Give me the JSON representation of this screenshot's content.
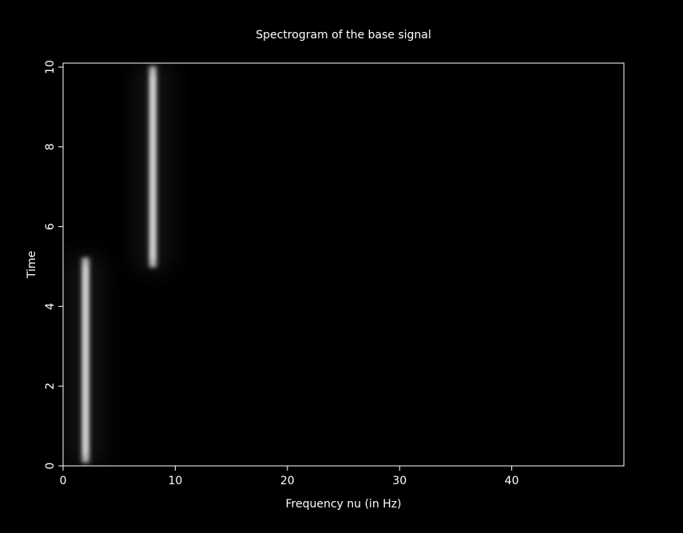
{
  "chart_data": {
    "type": "heatmap",
    "title": "Spectrogram of the base signal",
    "xlabel": "Frequency nu (in Hz)",
    "ylabel": "Time",
    "xlim": [
      0,
      50
    ],
    "ylim": [
      0,
      10.1
    ],
    "xticks": [
      0,
      10,
      20,
      30,
      40
    ],
    "yticks": [
      0,
      2,
      4,
      6,
      8,
      10
    ],
    "colormap": "grayscale",
    "background": "#000000",
    "foreground": "#ffffff",
    "components": [
      {
        "frequency": 2,
        "time_start": 0,
        "time_end": 5.3
      },
      {
        "frequency": 8,
        "time_start": 4.9,
        "time_end": 10.1
      }
    ]
  }
}
